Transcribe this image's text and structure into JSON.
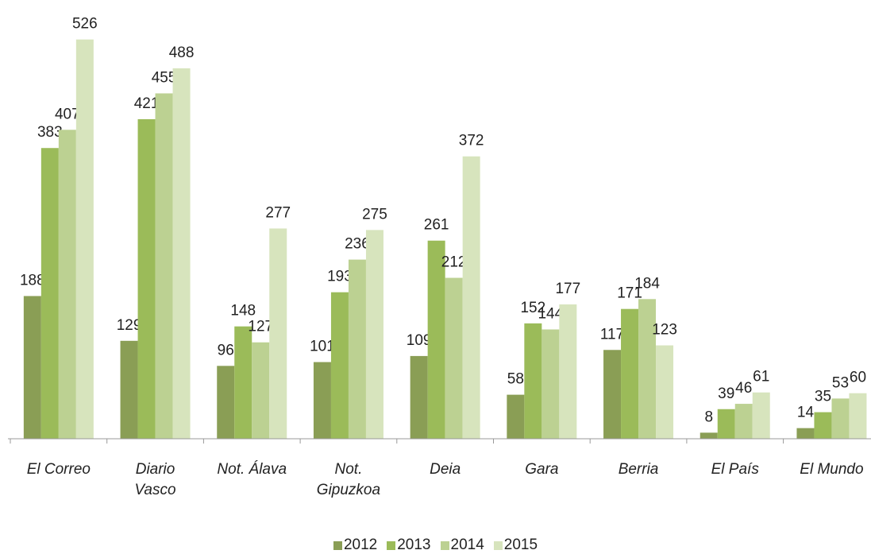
{
  "chart_data": {
    "type": "bar",
    "categories": [
      "El Correo",
      "Diario\nVasco",
      "Not. Álava",
      "Not.\nGipuzkoa",
      "Deia",
      "Gara",
      "Berria",
      "El País",
      "El Mundo"
    ],
    "series": [
      {
        "name": "2012",
        "color": "#8a9e55",
        "values": [
          188,
          129,
          96,
          101,
          109,
          58,
          117,
          8,
          14
        ]
      },
      {
        "name": "2013",
        "color": "#9bbb59",
        "values": [
          383,
          421,
          148,
          193,
          261,
          152,
          171,
          39,
          35
        ]
      },
      {
        "name": "2014",
        "color": "#bcd192",
        "values": [
          407,
          455,
          127,
          236,
          212,
          144,
          184,
          46,
          53
        ]
      },
      {
        "name": "2015",
        "color": "#d7e4bd",
        "values": [
          526,
          488,
          277,
          275,
          372,
          177,
          123,
          61,
          60
        ]
      }
    ],
    "ylim": [
      0,
      578
    ],
    "legend": "bottom"
  }
}
